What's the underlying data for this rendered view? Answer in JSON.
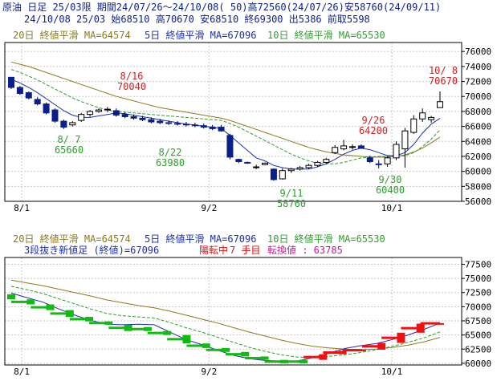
{
  "header": {
    "line1": "原油 日足 25/03限 期間24/07/26～24/10/08( 50)高72560(24/07/26)安58760(24/09/11)",
    "line2": "24/10/08 25/03 始68510 高70670 安68510 終69300 出5386 前取5598"
  },
  "ma_legend": {
    "ma20": "20日 終値平滑 MA=64574",
    "ma5": "5日 終値平滑 MA=67096",
    "ma10": "10日 終値平滑 MA=65530"
  },
  "lower_info": {
    "title": "3段抜き新値足 (終値)=67096",
    "status": "陽転中",
    "count": "7 手目",
    "reversal": "転換値 : 63785"
  },
  "colors": {
    "up_body": "#ffffff",
    "down_body": "#0a1f8c",
    "ma5": "#1a2fb0",
    "ma10": "#2e9e2e",
    "ma20": "#8c7a1a",
    "label_high": "#cc2222",
    "label_low": "#2e9e2e",
    "kagi_up": "#ee1111",
    "kagi_down": "#11bb11",
    "kagi_line": "#1a2fb0",
    "grid": "#c8c8c8"
  },
  "chart_data": [
    {
      "type": "candlestick",
      "x_ticks": [
        "8/1",
        "9/2",
        "10/1"
      ],
      "y_ticks": [
        "76000",
        "74000",
        "72000",
        "70000",
        "68000",
        "66000",
        "64000",
        "62000",
        "60000",
        "58000",
        "56000"
      ],
      "ylim": [
        56000,
        77200
      ],
      "candles": [
        {
          "o": 72560,
          "h": 72560,
          "l": 71000,
          "c": 71200
        },
        {
          "o": 71200,
          "h": 71400,
          "l": 70200,
          "c": 70400
        },
        {
          "o": 70500,
          "h": 70670,
          "l": 69600,
          "c": 69800
        },
        {
          "o": 69600,
          "h": 69900,
          "l": 68800,
          "c": 69000
        },
        {
          "o": 69000,
          "h": 69200,
          "l": 67600,
          "c": 67800
        },
        {
          "o": 68200,
          "h": 68400,
          "l": 66500,
          "c": 66700
        },
        {
          "o": 66700,
          "h": 66900,
          "l": 65660,
          "c": 65900
        },
        {
          "o": 66200,
          "h": 66700,
          "l": 66000,
          "c": 66500
        },
        {
          "o": 66800,
          "h": 67800,
          "l": 66600,
          "c": 67600
        },
        {
          "o": 67600,
          "h": 68200,
          "l": 67300,
          "c": 68000
        },
        {
          "o": 68000,
          "h": 68400,
          "l": 67800,
          "c": 68200
        },
        {
          "o": 68200,
          "h": 68600,
          "l": 67900,
          "c": 68300
        },
        {
          "o": 68100,
          "h": 68400,
          "l": 67300,
          "c": 67500
        },
        {
          "o": 67600,
          "h": 67900,
          "l": 67100,
          "c": 67300
        },
        {
          "o": 67300,
          "h": 67600,
          "l": 66900,
          "c": 67100
        },
        {
          "o": 67100,
          "h": 67400,
          "l": 66700,
          "c": 66900
        },
        {
          "o": 66900,
          "h": 67200,
          "l": 66400,
          "c": 66600
        },
        {
          "o": 66700,
          "h": 67000,
          "l": 66300,
          "c": 66500
        },
        {
          "o": 66500,
          "h": 66800,
          "l": 66200,
          "c": 66400
        },
        {
          "o": 66400,
          "h": 66700,
          "l": 66100,
          "c": 66300
        },
        {
          "o": 66300,
          "h": 66600,
          "l": 66000,
          "c": 66200
        },
        {
          "o": 66200,
          "h": 66500,
          "l": 65900,
          "c": 66100
        },
        {
          "o": 66100,
          "h": 66400,
          "l": 65700,
          "c": 65900
        },
        {
          "o": 65900,
          "h": 66200,
          "l": 65500,
          "c": 65700
        },
        {
          "o": 65900,
          "h": 66200,
          "l": 65300,
          "c": 65400
        },
        {
          "o": 64800,
          "h": 65000,
          "l": 61600,
          "c": 61900
        },
        {
          "o": 61600,
          "h": 61700,
          "l": 61100,
          "c": 61300
        },
        {
          "o": 61200,
          "h": 61300,
          "l": 61000,
          "c": 61100
        },
        {
          "o": 60500,
          "h": 60900,
          "l": 60300,
          "c": 60600
        },
        {
          "o": 60900,
          "h": 61200,
          "l": 60800,
          "c": 61100
        },
        {
          "o": 60300,
          "h": 60400,
          "l": 58760,
          "c": 58900
        },
        {
          "o": 59000,
          "h": 60400,
          "l": 58900,
          "c": 60100
        },
        {
          "o": 60100,
          "h": 60500,
          "l": 59800,
          "c": 60300
        },
        {
          "o": 60300,
          "h": 60700,
          "l": 60100,
          "c": 60500
        },
        {
          "o": 60500,
          "h": 61000,
          "l": 60300,
          "c": 60800
        },
        {
          "o": 60800,
          "h": 61400,
          "l": 60600,
          "c": 61200
        },
        {
          "o": 61200,
          "h": 61800,
          "l": 61000,
          "c": 61600
        },
        {
          "o": 62500,
          "h": 63500,
          "l": 62300,
          "c": 63200
        },
        {
          "o": 63000,
          "h": 64200,
          "l": 62800,
          "c": 63400
        },
        {
          "o": 63200,
          "h": 63600,
          "l": 62900,
          "c": 63300
        },
        {
          "o": 63400,
          "h": 63600,
          "l": 63000,
          "c": 63100
        },
        {
          "o": 61800,
          "h": 62100,
          "l": 61100,
          "c": 61300
        },
        {
          "o": 61000,
          "h": 61500,
          "l": 60400,
          "c": 60900
        },
        {
          "o": 61000,
          "h": 62000,
          "l": 60600,
          "c": 61800
        },
        {
          "o": 61800,
          "h": 64000,
          "l": 61500,
          "c": 63600
        },
        {
          "o": 63000,
          "h": 65800,
          "l": 60500,
          "c": 65400
        },
        {
          "o": 65200,
          "h": 67500,
          "l": 65000,
          "c": 67000
        },
        {
          "o": 67000,
          "h": 68400,
          "l": 66600,
          "c": 67800
        },
        {
          "o": 66900,
          "h": 67400,
          "l": 66500,
          "c": 67200
        },
        {
          "o": 68510,
          "h": 70670,
          "l": 68510,
          "c": 69300
        }
      ],
      "ma5": [
        72300,
        71800,
        71200,
        70500,
        69700,
        68900,
        68100,
        67500,
        67200,
        67200,
        67400,
        67600,
        67800,
        67700,
        67500,
        67300,
        67100,
        66900,
        66700,
        66500,
        66300,
        66200,
        66000,
        65900,
        65700,
        64800,
        63800,
        62800,
        61800,
        61400,
        60800,
        60500,
        60300,
        60300,
        60300,
        60600,
        61000,
        61600,
        62300,
        62800,
        63100,
        62900,
        62500,
        62100,
        62100,
        62500,
        63600,
        65100,
        66300,
        67096
      ],
      "ma10": [
        73600,
        73200,
        72700,
        72200,
        71600,
        71000,
        70400,
        69800,
        69300,
        68900,
        68500,
        68200,
        68000,
        67900,
        67800,
        67700,
        67600,
        67500,
        67400,
        67300,
        67200,
        67100,
        67000,
        66900,
        66800,
        66400,
        65900,
        65300,
        64700,
        64100,
        63500,
        62900,
        62300,
        61800,
        61400,
        61100,
        61000,
        61000,
        61200,
        61500,
        61800,
        61900,
        62000,
        62000,
        62000,
        62100,
        62500,
        63300,
        64300,
        65530
      ],
      "ma20": [
        74600,
        74300,
        74000,
        73600,
        73200,
        72800,
        72400,
        72000,
        71600,
        71200,
        70800,
        70400,
        70000,
        69700,
        69400,
        69100,
        68800,
        68500,
        68300,
        68100,
        67900,
        67700,
        67500,
        67300,
        67100,
        66800,
        66400,
        66000,
        65600,
        65200,
        64800,
        64400,
        64000,
        63600,
        63200,
        62900,
        62600,
        62400,
        62200,
        62100,
        62000,
        61900,
        61900,
        61900,
        62000,
        62200,
        62600,
        63100,
        63800,
        64574
      ],
      "annotations": [
        {
          "date": "8/16",
          "value": "70040",
          "color": "high"
        },
        {
          "date": "8/ 7",
          "value": "65660",
          "color": "low"
        },
        {
          "date": "8/22",
          "value": "63980",
          "color": "low"
        },
        {
          "date": "9/11",
          "value": "58760",
          "color": "low"
        },
        {
          "date": "9/26",
          "value": "64200",
          "color": "high"
        },
        {
          "date": "9/30",
          "value": "60400",
          "color": "low"
        },
        {
          "date": "10/ 8",
          "value": "70670",
          "color": "high"
        }
      ]
    },
    {
      "type": "renko",
      "x_ticks": [
        "8/1",
        "9/2",
        "10/1"
      ],
      "y_ticks": [
        "77500",
        "75000",
        "72500",
        "70000",
        "67500",
        "65000",
        "62500",
        "60000"
      ],
      "ylim": [
        59700,
        78700
      ],
      "bricks": [
        {
          "top": 72200,
          "bottom": 71300,
          "dir": "down"
        },
        {
          "top": 71300,
          "bottom": 70400,
          "dir": "down"
        },
        {
          "top": 70400,
          "bottom": 69400,
          "dir": "down"
        },
        {
          "top": 69400,
          "bottom": 68200,
          "dir": "down"
        },
        {
          "top": 68200,
          "bottom": 67400,
          "dir": "down"
        },
        {
          "top": 67400,
          "bottom": 66800,
          "dir": "down"
        },
        {
          "top": 66800,
          "bottom": 65700,
          "dir": "down"
        },
        {
          "top": 66400,
          "bottom": 65700,
          "dir": "down"
        },
        {
          "top": 65700,
          "bottom": 65000,
          "dir": "down"
        },
        {
          "top": 65000,
          "bottom": 63500,
          "dir": "down"
        },
        {
          "top": 63500,
          "bottom": 62700,
          "dir": "down"
        },
        {
          "top": 62700,
          "bottom": 62000,
          "dir": "down"
        },
        {
          "top": 62000,
          "bottom": 61200,
          "dir": "down"
        },
        {
          "top": 61200,
          "bottom": 60600,
          "dir": "down"
        },
        {
          "top": 60600,
          "bottom": 60000,
          "dir": "down"
        },
        {
          "top": 60600,
          "bottom": 60000,
          "dir": "down"
        },
        {
          "top": 61600,
          "bottom": 60600,
          "dir": "up"
        },
        {
          "top": 62200,
          "bottom": 61600,
          "dir": "up"
        },
        {
          "top": 62400,
          "bottom": 62200,
          "dir": "up"
        },
        {
          "top": 63600,
          "bottom": 62400,
          "dir": "up"
        },
        {
          "top": 65400,
          "bottom": 63600,
          "dir": "up"
        },
        {
          "top": 67000,
          "bottom": 65400,
          "dir": "up"
        },
        {
          "top": 67096,
          "bottom": 67000,
          "dir": "up"
        }
      ],
      "ma_lines": {
        "ma5": [
          72400,
          71600,
          70800,
          69600,
          68500,
          67600,
          66900,
          66800,
          66900,
          66800,
          65500,
          64200,
          63300,
          62300,
          61400,
          60800,
          60500,
          60400,
          60400,
          61000,
          61800,
          62600,
          63100,
          63500,
          64200,
          65000,
          66000,
          67096
        ],
        "ma10": [
          73600,
          73000,
          72300,
          71400,
          70500,
          69600,
          68800,
          68400,
          68200,
          68000,
          67200,
          66300,
          65500,
          64600,
          63700,
          62800,
          62100,
          61500,
          61100,
          61000,
          61200,
          61500,
          61900,
          62400,
          63000,
          63700,
          64500,
          65530
        ],
        "ma20": [
          74700,
          74200,
          73700,
          73100,
          72500,
          71900,
          71200,
          70700,
          70200,
          69800,
          69200,
          68500,
          67800,
          67100,
          66300,
          65500,
          64800,
          64100,
          63500,
          63000,
          62700,
          62500,
          62400,
          62500,
          62800,
          63200,
          63800,
          64574
        ]
      }
    }
  ]
}
